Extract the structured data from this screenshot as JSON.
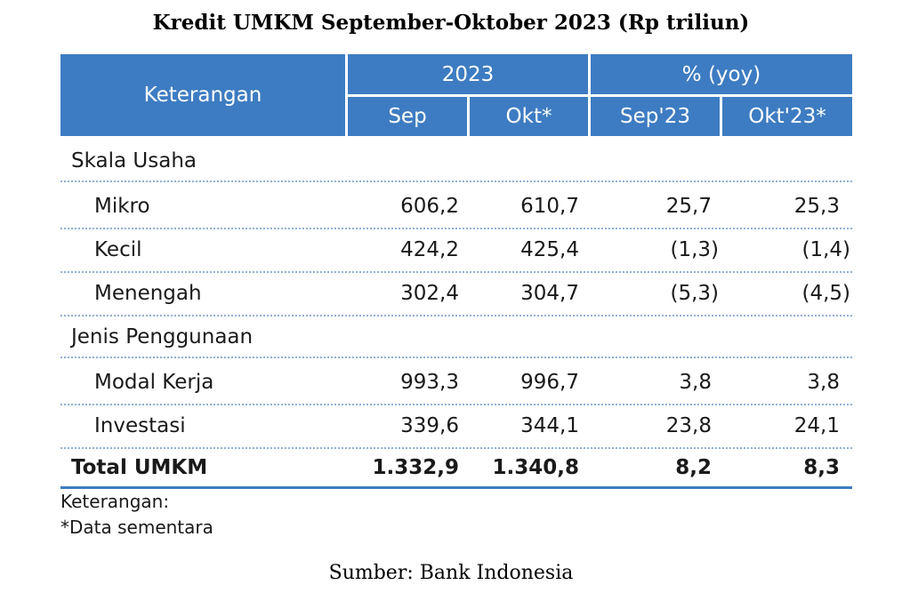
{
  "title": "Kredit UMKM September-Oktober 2023 (Rp triliun)",
  "table": {
    "header": {
      "keterangan": "Keterangan",
      "group_2023": "2023",
      "group_yoy": "% (yoy)",
      "col_sep": "Sep",
      "col_okt": "Okt*",
      "col_sep23": "Sep'23",
      "col_okt23": "Okt'23*"
    },
    "sections": [
      {
        "label": "Skala Usaha",
        "rows": [
          {
            "label": "Mikro",
            "sep": "606,2",
            "okt": "610,7",
            "yoy_sep": "25,7",
            "yoy_okt": "25,3"
          },
          {
            "label": "Kecil",
            "sep": "424,2",
            "okt": "425,4",
            "yoy_sep": "(1,3)",
            "yoy_okt": "(1,4)"
          },
          {
            "label": "Menengah",
            "sep": "302,4",
            "okt": "304,7",
            "yoy_sep": "(5,3)",
            "yoy_okt": "(4,5)"
          }
        ]
      },
      {
        "label": "Jenis Penggunaan",
        "rows": [
          {
            "label": "Modal Kerja",
            "sep": "993,3",
            "okt": "996,7",
            "yoy_sep": "3,8",
            "yoy_okt": "3,8"
          },
          {
            "label": "Investasi",
            "sep": "339,6",
            "okt": "344,1",
            "yoy_sep": "23,8",
            "yoy_okt": "24,1"
          }
        ]
      }
    ],
    "total": {
      "label": "Total UMKM",
      "sep": "1.332,9",
      "okt": "1.340,8",
      "yoy_sep": "8,2",
      "yoy_okt": "8,3"
    }
  },
  "notes": {
    "heading": "Keterangan:",
    "line1": "*Data sementara"
  },
  "source": "Sumber: Bank Indonesia",
  "colors": {
    "header_bg": "#3d7cc2",
    "divider": "#8fb0d6"
  }
}
